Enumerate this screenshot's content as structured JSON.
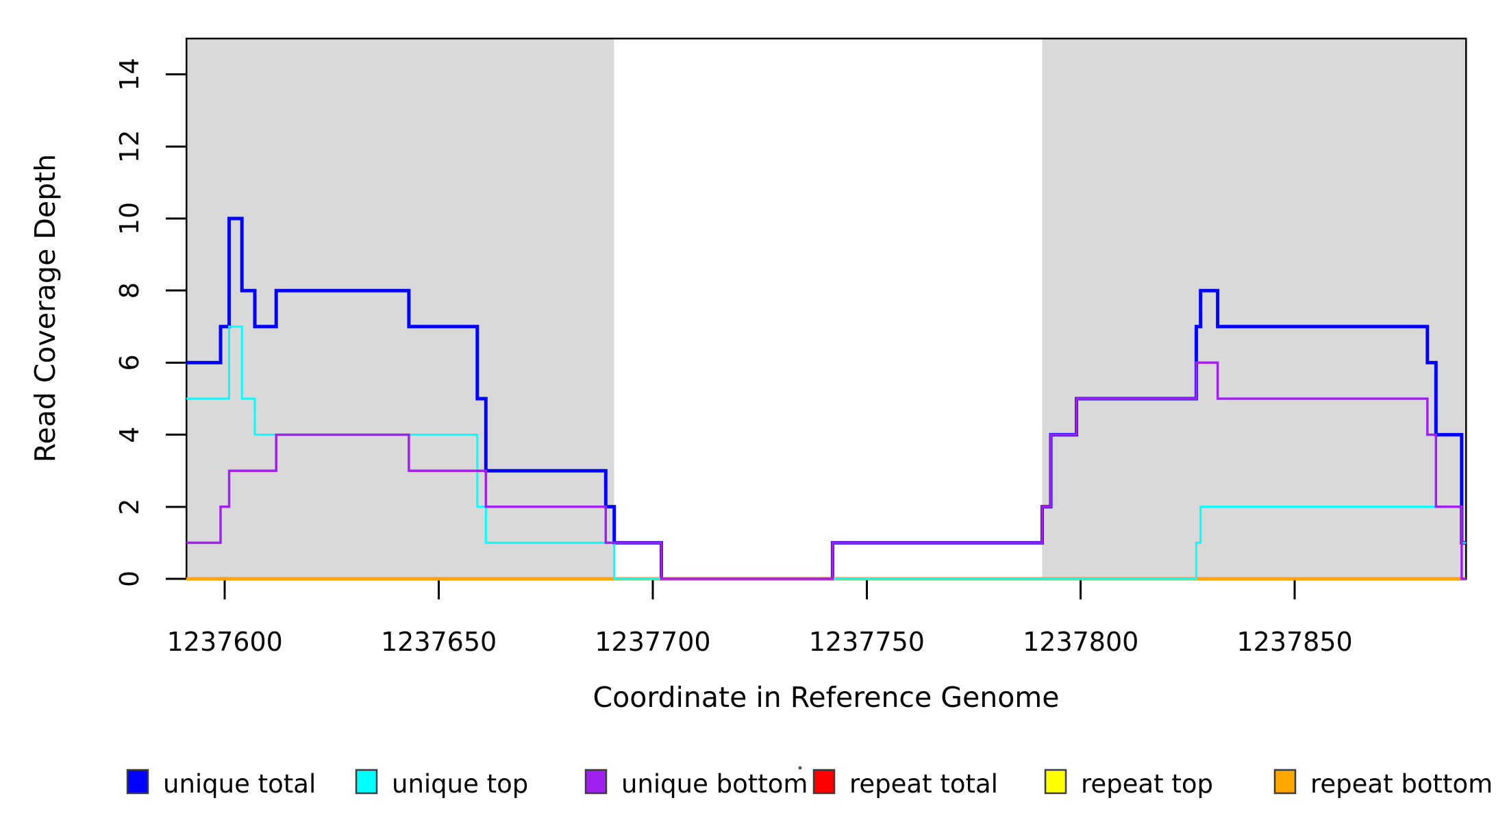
{
  "titles": {
    "x_axis": "Coordinate in Reference Genome",
    "y_axis": "Read Coverage Depth"
  },
  "colors": {
    "background": "#FFFFFF",
    "shading": "#D9D9D9",
    "box": "#000000",
    "unique_total": "#0000FF",
    "unique_top": "#00FFFF",
    "unique_bottom": "#A020F0",
    "repeat_total": "#FF0000",
    "repeat_top": "#FFFF00",
    "repeat_bottom": "#FFA500"
  },
  "chart_data": {
    "type": "line",
    "subtype": "step-after-coverage",
    "title": "",
    "xlabel": "Coordinate in Reference Genome",
    "ylabel": "Read Coverage Depth",
    "xlim": [
      1237591,
      1237890
    ],
    "ylim": [
      0,
      15
    ],
    "grid": false,
    "x_ticks": [
      1237600,
      1237650,
      1237700,
      1237750,
      1237800,
      1237850
    ],
    "y_ticks": [
      0,
      2,
      4,
      6,
      8,
      10,
      12,
      14
    ],
    "shaded_regions": [
      {
        "x0": 1237591,
        "x1": 1237691,
        "color": "#D9D9D9"
      },
      {
        "x0": 1237791,
        "x1": 1237890,
        "color": "#D9D9D9"
      }
    ],
    "legend_position": "bottom",
    "series": [
      {
        "name": "unique total",
        "key": "unique_total",
        "color": "#0000FF",
        "stroke_width": 5,
        "points": [
          [
            1237591,
            6
          ],
          [
            1237599,
            7
          ],
          [
            1237601,
            10
          ],
          [
            1237604,
            8
          ],
          [
            1237607,
            7
          ],
          [
            1237612,
            8
          ],
          [
            1237643,
            7
          ],
          [
            1237659,
            5
          ],
          [
            1237661,
            3
          ],
          [
            1237689,
            2
          ],
          [
            1237691,
            1
          ],
          [
            1237702,
            0
          ],
          [
            1237742,
            1
          ],
          [
            1237791,
            2
          ],
          [
            1237793,
            4
          ],
          [
            1237799,
            5
          ],
          [
            1237827,
            7
          ],
          [
            1237828,
            8
          ],
          [
            1237832,
            7
          ],
          [
            1237881,
            6
          ],
          [
            1237883,
            4
          ],
          [
            1237889,
            1
          ],
          [
            1237890,
            1
          ]
        ]
      },
      {
        "name": "unique top",
        "key": "unique_top",
        "color": "#00FFFF",
        "stroke_width": 3,
        "points": [
          [
            1237591,
            5
          ],
          [
            1237601,
            7
          ],
          [
            1237604,
            5
          ],
          [
            1237607,
            4
          ],
          [
            1237659,
            2
          ],
          [
            1237661,
            1
          ],
          [
            1237691,
            0
          ],
          [
            1237827,
            1
          ],
          [
            1237828,
            2
          ],
          [
            1237889,
            1
          ],
          [
            1237890,
            1
          ]
        ]
      },
      {
        "name": "unique bottom",
        "key": "unique_bottom",
        "color": "#A020F0",
        "stroke_width": 3.5,
        "points": [
          [
            1237591,
            1
          ],
          [
            1237599,
            2
          ],
          [
            1237601,
            3
          ],
          [
            1237612,
            4
          ],
          [
            1237643,
            3
          ],
          [
            1237661,
            2
          ],
          [
            1237689,
            1
          ],
          [
            1237702,
            0
          ],
          [
            1237742,
            1
          ],
          [
            1237791,
            2
          ],
          [
            1237793,
            4
          ],
          [
            1237799,
            5
          ],
          [
            1237827,
            6
          ],
          [
            1237832,
            5
          ],
          [
            1237881,
            4
          ],
          [
            1237883,
            2
          ],
          [
            1237889,
            0
          ],
          [
            1237890,
            0
          ]
        ]
      },
      {
        "name": "repeat total",
        "key": "repeat_total",
        "color": "#FF0000",
        "stroke_width": 4.5,
        "points": [
          [
            1237591,
            0
          ],
          [
            1237890,
            0
          ]
        ]
      },
      {
        "name": "repeat top",
        "key": "repeat_top",
        "color": "#FFFF00",
        "stroke_width": 4,
        "points": [
          [
            1237591,
            0
          ],
          [
            1237890,
            0
          ]
        ]
      },
      {
        "name": "repeat bottom",
        "key": "repeat_bottom",
        "color": "#FFA500",
        "stroke_width": 4.5,
        "points": [
          [
            1237591,
            0
          ],
          [
            1237890,
            0
          ]
        ]
      }
    ],
    "draw_order": [
      "unique total",
      "repeat total",
      "repeat top",
      "repeat bottom",
      "unique top",
      "unique bottom"
    ],
    "legend": [
      {
        "label": "unique total",
        "color": "#0000FF"
      },
      {
        "label": "unique top",
        "color": "#00FFFF"
      },
      {
        "label": "unique bottom",
        "color": "#A020F0"
      },
      {
        "label": "repeat total",
        "color": "#FF0000"
      },
      {
        "label": "repeat top",
        "color": "#FFFF00"
      },
      {
        "label": "repeat bottom",
        "color": "#FFA500"
      }
    ]
  }
}
